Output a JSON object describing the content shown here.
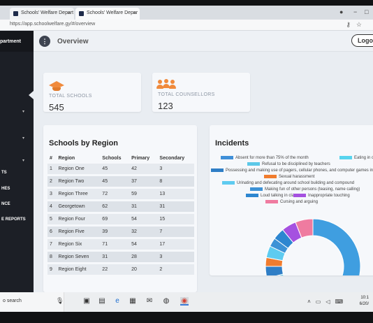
{
  "browser": {
    "tabs": [
      {
        "label": "Schools' Welfare Depart"
      },
      {
        "label": "Schools' Welfare Depar"
      }
    ],
    "url": "https://app.schoolwelfare.gy/#/overview"
  },
  "sidebar": {
    "brand": "partment",
    "items": [
      {
        "label": "TS"
      },
      {
        "label": "HES"
      },
      {
        "label": "NCE"
      },
      {
        "label": "E REPORTS"
      }
    ]
  },
  "header": {
    "title": "Overview",
    "menu_icon": "⋮",
    "logout_label": "Logo"
  },
  "stats": {
    "schools": {
      "label": "TOTAL SCHOOLS",
      "value": "545",
      "icon": "graduation-cap-icon"
    },
    "counsellors": {
      "label": "TOTAL COUNSELLORS",
      "value": "123",
      "icon": "people-icon"
    }
  },
  "schools_by_region": {
    "title": "Schools by Region",
    "columns": [
      "#",
      "Region",
      "Schools",
      "Primary",
      "Secondary"
    ],
    "rows": [
      [
        "1",
        "Region One",
        "45",
        "42",
        "3"
      ],
      [
        "2",
        "Region Two",
        "45",
        "37",
        "8"
      ],
      [
        "3",
        "Region Three",
        "72",
        "59",
        "13"
      ],
      [
        "4",
        "Georgetown",
        "62",
        "31",
        "31"
      ],
      [
        "5",
        "Region Four",
        "69",
        "54",
        "15"
      ],
      [
        "6",
        "Region Five",
        "39",
        "32",
        "7"
      ],
      [
        "7",
        "Region Six",
        "71",
        "54",
        "17"
      ],
      [
        "8",
        "Region Seven",
        "31",
        "28",
        "3"
      ],
      [
        "9",
        "Region Eight",
        "22",
        "20",
        "2"
      ]
    ]
  },
  "incidents": {
    "title": "Incidents",
    "legend": [
      {
        "label": "Absent for more than 75% of the month",
        "color": "#3f8fd8"
      },
      {
        "label": "Eating in class",
        "color": "#57d4ee"
      },
      {
        "label": "Refusal to be disciplined by teachers",
        "color": "#5cc8e8"
      },
      {
        "label": "Possessing and making use of pagers, cellular phones, and computer games in",
        "color": "#2f7ec6"
      },
      {
        "label": "Sexual harassment",
        "color": "#f07c2e"
      },
      {
        "label": "Urinating and defecating around school building and compound",
        "color": "#5ecbf0"
      },
      {
        "label": "Making fun of other persons (teasing, name calling)",
        "color": "#3d92d6"
      },
      {
        "label": "Loud talking in class",
        "color": "#2d86d0"
      },
      {
        "label": "Inappropriate touching",
        "color": "#a551e0"
      },
      {
        "label": "Cursing and arguing",
        "color": "#ef7ba0"
      }
    ]
  },
  "chart_data": {
    "type": "pie",
    "title": "Incidents",
    "categories": [
      "Absent for more than 75% of the month",
      "Eating in class",
      "Refusal to be disciplined by teachers",
      "Possessing and making use of pagers, cellular phones, and computer games in",
      "Sexual harassment",
      "Urinating and defecating around school building and compound",
      "Making fun of other persons (teasing, name calling)",
      "Loud talking in class",
      "Inappropriate touching",
      "Cursing and arguing"
    ],
    "values": [
      62,
      5,
      4,
      4,
      3,
      4,
      3,
      4,
      5,
      6
    ],
    "colors": [
      "#3f9ee0",
      "#57d4ee",
      "#5cc8e8",
      "#2f7ec6",
      "#f07c2e",
      "#5ecbf0",
      "#3d92d6",
      "#2d86d0",
      "#a551e0",
      "#ef7ba0"
    ],
    "legend_position": "top"
  },
  "taskbar": {
    "search_label": "o search",
    "clock_time": "10:1",
    "clock_date": "6/20/"
  }
}
